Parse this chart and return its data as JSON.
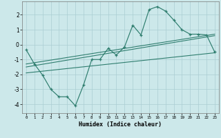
{
  "bg_color": "#cce8ea",
  "grid_color": "#aacdd2",
  "line_color": "#2e7d6e",
  "xlabel": "Humidex (Indice chaleur)",
  "xlim": [
    -0.5,
    23.5
  ],
  "ylim": [
    -4.6,
    2.9
  ],
  "xticks": [
    0,
    1,
    2,
    3,
    4,
    5,
    6,
    7,
    8,
    9,
    10,
    11,
    12,
    13,
    14,
    15,
    16,
    17,
    18,
    19,
    20,
    21,
    22,
    23
  ],
  "yticks": [
    -4,
    -3,
    -2,
    -1,
    0,
    1,
    2
  ],
  "main_x": [
    0,
    1,
    2,
    3,
    4,
    5,
    6,
    7,
    8,
    9,
    10,
    11,
    12,
    13,
    14,
    15,
    16,
    17,
    18,
    19,
    20,
    21,
    22,
    23
  ],
  "main_y": [
    -0.35,
    -1.3,
    -2.05,
    -3.0,
    -3.5,
    -3.5,
    -4.1,
    -2.7,
    -1.0,
    -1.0,
    -0.25,
    -0.7,
    -0.15,
    1.3,
    0.65,
    2.35,
    2.55,
    2.25,
    1.65,
    1.0,
    0.7,
    0.7,
    0.65,
    -0.5
  ],
  "reg_line1_x": [
    0,
    23
  ],
  "reg_line1_y": [
    -1.3,
    0.7
  ],
  "reg_line2_x": [
    0,
    23
  ],
  "reg_line2_y": [
    -1.5,
    0.6
  ],
  "reg_line3_x": [
    0,
    23
  ],
  "reg_line3_y": [
    -1.9,
    -0.55
  ]
}
